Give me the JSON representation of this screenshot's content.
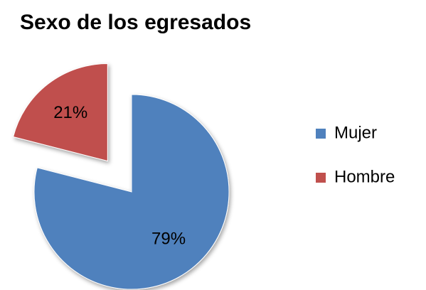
{
  "chart_data": {
    "type": "pie",
    "title": "Sexo de los egresados",
    "categories": [
      "Mujer",
      "Hombre"
    ],
    "values": [
      79,
      21
    ],
    "value_labels": [
      "79%",
      "21%"
    ],
    "colors": [
      "#4f81bd",
      "#c0504d"
    ],
    "exploded": [
      false,
      true
    ],
    "legend": "right"
  }
}
